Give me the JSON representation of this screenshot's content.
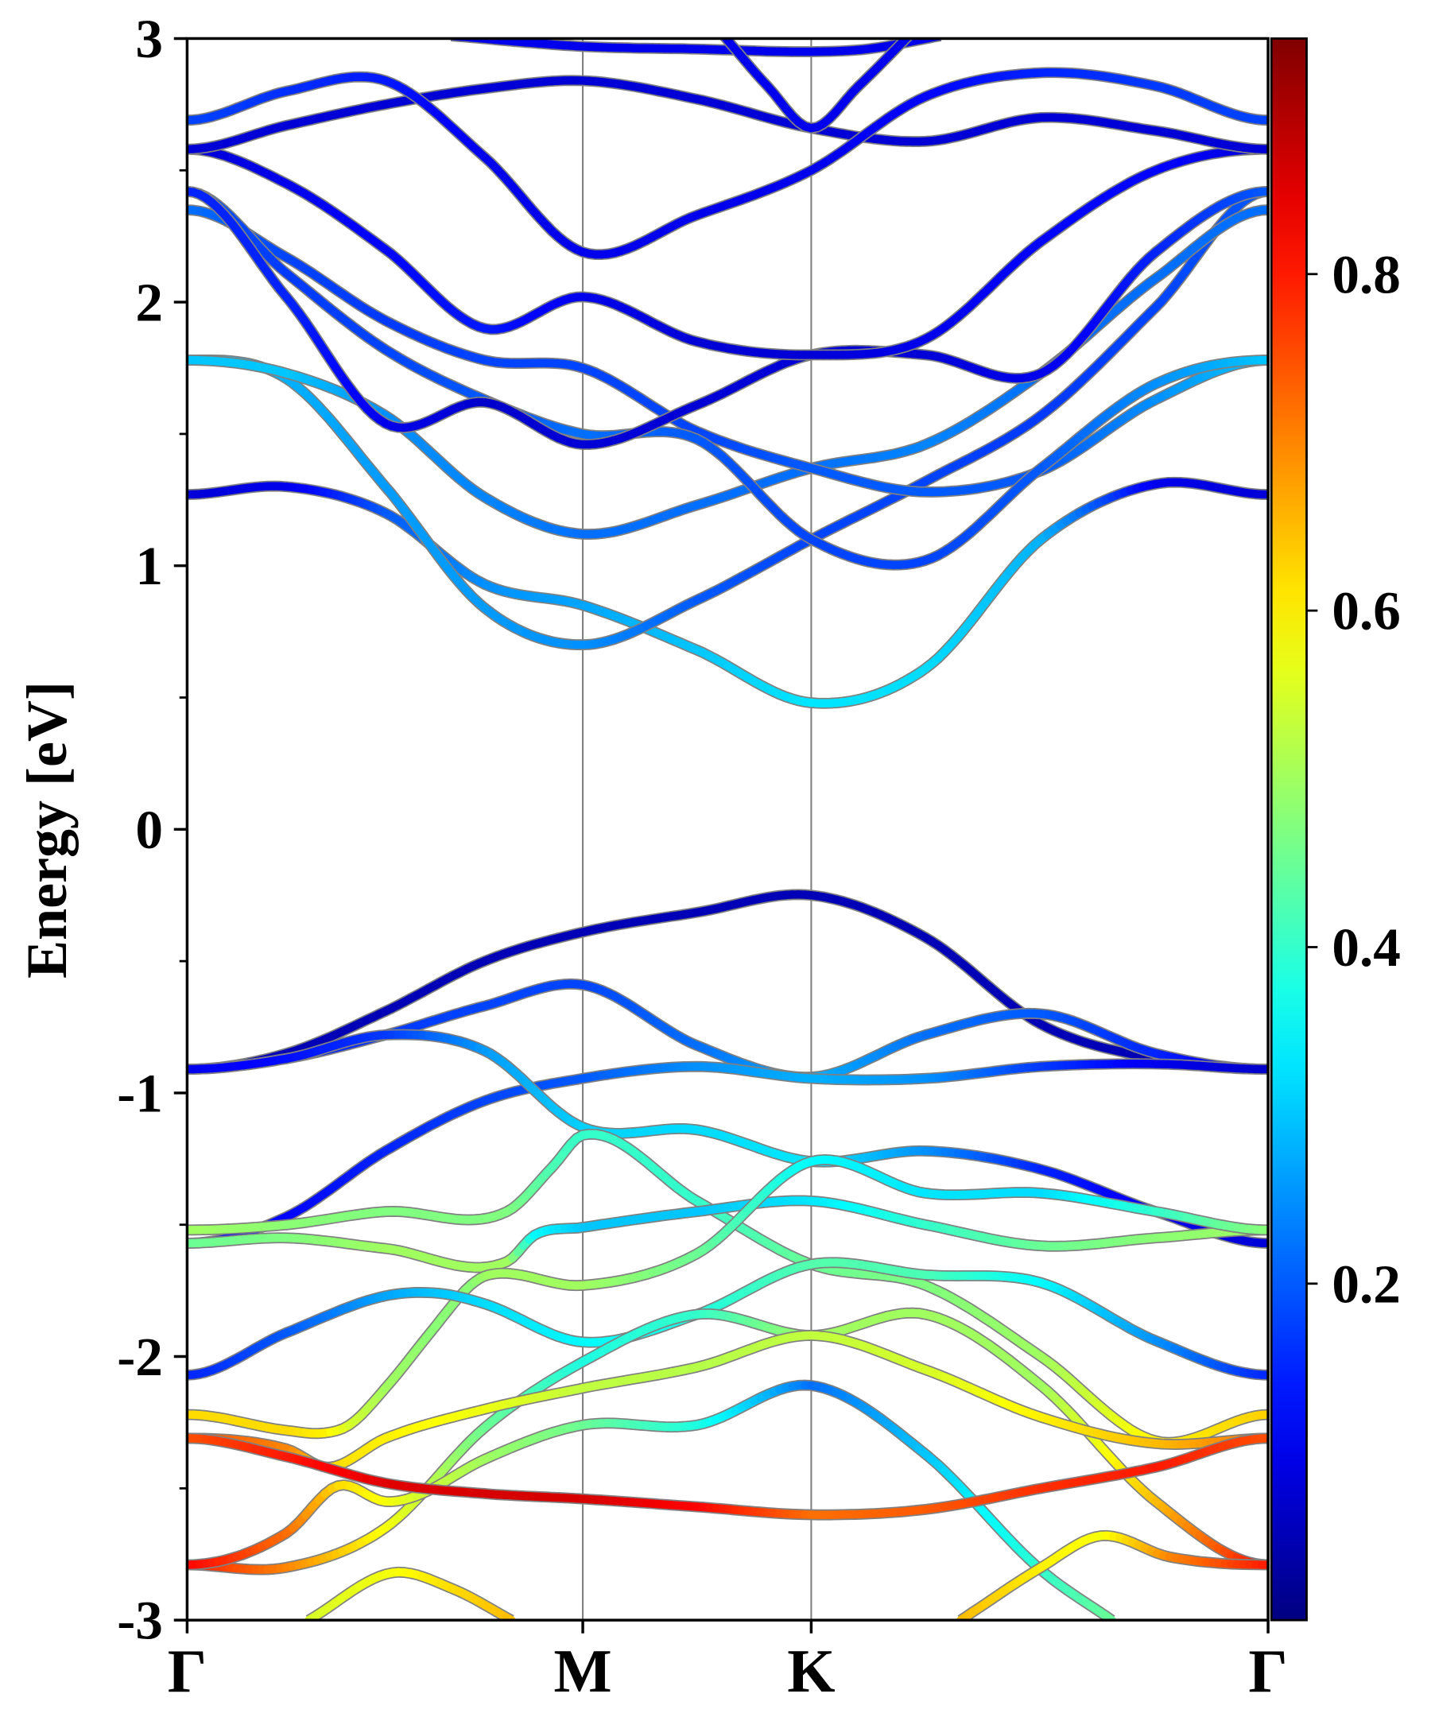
{
  "chart_data": {
    "type": "line",
    "title": "",
    "xlabel": "",
    "ylabel": "Energy [eV]",
    "ylim": [
      -3,
      3
    ],
    "xlim": [
      0,
      2.366
    ],
    "grid": false,
    "y_ticks": [
      {
        "value": 3,
        "label": "3"
      },
      {
        "value": 2,
        "label": "2"
      },
      {
        "value": 1,
        "label": "1"
      },
      {
        "value": 0,
        "label": "0"
      },
      {
        "value": -1,
        "label": "-1"
      },
      {
        "value": -2,
        "label": "-2"
      },
      {
        "value": -3,
        "label": "-3"
      }
    ],
    "y_minor_ticks": [
      2.5,
      1.5,
      0.5,
      -0.5,
      -1.5,
      -2.5
    ],
    "high_symmetry_points": [
      {
        "k": 0,
        "label": "Γ"
      },
      {
        "k": 0.866,
        "label": "M"
      },
      {
        "k": 1.366,
        "label": "K"
      },
      {
        "k": 2.366,
        "label": "Γ"
      }
    ],
    "colorbar": {
      "colormap": "jet",
      "min": 0.0,
      "max": 0.94,
      "ticks": [
        {
          "value": 0.2,
          "label": "0.2"
        },
        {
          "value": 0.4,
          "label": "0.4"
        },
        {
          "value": 0.6,
          "label": "0.6"
        },
        {
          "value": 0.8,
          "label": "0.8"
        }
      ]
    },
    "colors": {
      "band_outline": "#808080",
      "frame": "#000000",
      "symmetry_line": "#808080"
    },
    "bands": [
      {
        "name": "cb-a",
        "k": [
          0,
          0.217,
          0.434,
          0.651,
          0.866,
          1.116,
          1.366,
          1.616,
          1.869,
          2.12,
          2.366
        ],
        "E": [
          1.27,
          1.3,
          1.2,
          0.93,
          0.85,
          0.68,
          0.48,
          0.61,
          1.1,
          1.31,
          1.27
        ],
        "w": [
          0.08,
          0.1,
          0.2,
          0.25,
          0.27,
          0.3,
          0.33,
          0.32,
          0.28,
          0.1,
          0.08
        ]
      },
      {
        "name": "cb-b",
        "k": [
          0,
          0.217,
          0.434,
          0.651,
          0.866,
          1.116,
          1.366,
          1.616,
          1.869,
          2.12,
          2.366
        ],
        "E": [
          1.78,
          1.71,
          1.3,
          0.84,
          0.7,
          0.87,
          1.1,
          1.32,
          1.57,
          1.98,
          2.42
        ],
        "w": [
          0.3,
          0.28,
          0.26,
          0.26,
          0.25,
          0.2,
          0.18,
          0.18,
          0.17,
          0.18,
          0.2
        ]
      },
      {
        "name": "cb-c",
        "k": [
          0,
          0.217,
          0.434,
          0.651,
          0.866,
          1.116,
          1.366,
          1.616,
          1.869,
          2.12,
          2.366
        ],
        "E": [
          1.78,
          1.73,
          1.57,
          1.26,
          1.12,
          1.23,
          1.37,
          1.46,
          1.73,
          2.09,
          2.35
        ],
        "w": [
          0.3,
          0.3,
          0.25,
          0.24,
          0.22,
          0.22,
          0.22,
          0.24,
          0.22,
          0.22,
          0.22
        ]
      },
      {
        "name": "cb-d",
        "k": [
          0,
          0.217,
          0.434,
          0.651,
          0.866,
          1.116,
          1.366,
          1.616,
          1.869,
          2.12,
          2.366
        ],
        "E": [
          2.35,
          2.17,
          1.93,
          1.78,
          1.75,
          1.51,
          1.37,
          1.28,
          1.36,
          1.63,
          1.78
        ],
        "w": [
          0.22,
          0.18,
          0.17,
          0.18,
          0.18,
          0.18,
          0.2,
          0.2,
          0.2,
          0.25,
          0.3
        ]
      },
      {
        "name": "cb-e",
        "k": [
          0,
          0.217,
          0.434,
          0.651,
          0.866,
          1.116,
          1.366,
          1.616,
          1.869,
          2.12,
          2.366
        ],
        "E": [
          2.42,
          2.11,
          1.82,
          1.63,
          1.5,
          1.48,
          1.1,
          1.02,
          1.37,
          1.69,
          1.78
        ],
        "w": [
          0.2,
          0.17,
          0.18,
          0.2,
          0.22,
          0.2,
          0.18,
          0.18,
          0.2,
          0.25,
          0.3
        ]
      },
      {
        "name": "cb-f",
        "k": [
          0,
          0.217,
          0.434,
          0.651,
          0.866,
          1.116,
          1.366,
          1.616,
          1.869,
          2.12,
          2.366
        ],
        "E": [
          2.42,
          2.02,
          1.54,
          1.62,
          1.46,
          1.61,
          1.8,
          1.8,
          1.73,
          2.19,
          2.42
        ],
        "w": [
          0.15,
          0.15,
          0.1,
          0.07,
          0.08,
          0.08,
          0.08,
          0.08,
          0.1,
          0.15,
          0.2
        ]
      },
      {
        "name": "cb-g",
        "k": [
          0,
          0.217,
          0.434,
          0.651,
          0.866,
          1.116,
          1.366,
          1.616,
          1.869,
          2.12,
          2.366
        ],
        "E": [
          2.58,
          2.45,
          2.2,
          1.9,
          2.02,
          1.85,
          1.8,
          1.86,
          2.23,
          2.5,
          2.58
        ],
        "w": [
          0.08,
          0.1,
          0.12,
          0.14,
          0.1,
          0.08,
          0.08,
          0.1,
          0.12,
          0.12,
          0.08
        ]
      },
      {
        "name": "cb-h",
        "k": [
          0,
          0.217,
          0.434,
          0.651,
          0.866,
          1.116,
          1.366,
          1.616,
          1.869,
          2.12,
          2.366
        ],
        "E": [
          2.58,
          2.67,
          2.75,
          2.81,
          2.84,
          2.77,
          2.66,
          2.61,
          2.7,
          2.65,
          2.58
        ],
        "w": [
          0.08,
          0.08,
          0.08,
          0.08,
          0.08,
          0.08,
          0.08,
          0.08,
          0.08,
          0.08,
          0.08
        ]
      },
      {
        "name": "cb-i",
        "k": [
          0,
          0.217,
          0.434,
          0.651,
          0.866,
          1.116,
          1.366,
          1.616,
          1.869,
          2.12,
          2.366
        ],
        "E": [
          2.69,
          2.8,
          2.84,
          2.55,
          2.19,
          2.33,
          2.5,
          2.78,
          2.87,
          2.82,
          2.69
        ],
        "w": [
          0.18,
          0.16,
          0.14,
          0.1,
          0.1,
          0.1,
          0.1,
          0.12,
          0.15,
          0.17,
          0.18
        ]
      },
      {
        "name": "cb-j",
        "k": [
          0.578,
          0.866,
          1.116,
          1.366,
          1.488,
          1.649
        ],
        "E": [
          3.01,
          2.97,
          2.96,
          2.95,
          2.96,
          3.01
        ],
        "w": [
          0.1,
          0.1,
          0.1,
          0.1,
          0.1,
          0.1
        ]
      },
      {
        "name": "cb-k",
        "k": [
          1.17,
          1.27,
          1.366,
          1.47,
          1.585
        ],
        "E": [
          3.02,
          2.82,
          2.66,
          2.82,
          3.02
        ],
        "w": [
          0.1,
          0.1,
          0.1,
          0.1,
          0.1
        ]
      },
      {
        "name": "vb-1",
        "k": [
          0,
          0.217,
          0.434,
          0.651,
          0.866,
          1.116,
          1.366,
          1.616,
          1.869,
          2.12,
          2.366
        ],
        "E": [
          -0.91,
          -0.85,
          -0.69,
          -0.5,
          -0.39,
          -0.315,
          -0.25,
          -0.41,
          -0.74,
          -0.87,
          -0.91
        ],
        "w": [
          0.05,
          0.05,
          0.05,
          0.05,
          0.05,
          0.05,
          0.05,
          0.05,
          0.05,
          0.05,
          0.05
        ]
      },
      {
        "name": "vb-2",
        "k": [
          0,
          0.217,
          0.434,
          0.651,
          0.866,
          1.116,
          1.366,
          1.616,
          1.869,
          2.12,
          2.366
        ],
        "E": [
          -0.91,
          -0.87,
          -0.78,
          -0.67,
          -0.59,
          -0.82,
          -0.94,
          -0.78,
          -0.7,
          -0.85,
          -0.91
        ],
        "w": [
          0.1,
          0.13,
          0.17,
          0.18,
          0.18,
          0.22,
          0.28,
          0.22,
          0.2,
          0.15,
          0.08
        ]
      },
      {
        "name": "vb-3",
        "k": [
          0,
          0.217,
          0.434,
          0.651,
          0.866,
          1.116,
          1.366,
          1.616,
          1.869,
          2.12,
          2.366
        ],
        "E": [
          -1.57,
          -1.47,
          -1.22,
          -1.03,
          -0.945,
          -0.9,
          -0.945,
          -0.945,
          -0.9,
          -0.89,
          -0.91
        ],
        "w": [
          0.12,
          0.12,
          0.15,
          0.18,
          0.2,
          0.25,
          0.28,
          0.25,
          0.17,
          0.1,
          0.07
        ]
      },
      {
        "name": "vb-4",
        "k": [
          0,
          0.217,
          0.434,
          0.651,
          0.866,
          1.116,
          1.366,
          1.616,
          1.869,
          2.12,
          2.366
        ],
        "E": [
          -0.91,
          -0.87,
          -0.78,
          -0.84,
          -1.13,
          -1.14,
          -1.26,
          -1.22,
          -1.29,
          -1.45,
          -1.57
        ],
        "w": [
          0.1,
          0.13,
          0.17,
          0.26,
          0.31,
          0.32,
          0.33,
          0.25,
          0.15,
          0.1,
          0.08
        ]
      },
      {
        "name": "vb-5",
        "k": [
          0,
          0.217,
          0.434,
          0.7,
          0.8,
          0.866,
          1.116,
          1.366,
          1.616,
          1.869,
          2.12,
          2.366
        ],
        "E": [
          -1.52,
          -1.5,
          -1.45,
          -1.45,
          -1.28,
          -1.16,
          -1.41,
          -1.65,
          -1.73,
          -2.0,
          -2.32,
          -2.22
        ],
        "w": [
          0.5,
          0.48,
          0.47,
          0.47,
          0.42,
          0.4,
          0.4,
          0.45,
          0.47,
          0.5,
          0.6,
          0.63
        ]
      },
      {
        "name": "vb-6",
        "k": [
          0,
          0.217,
          0.434,
          0.7,
          0.76,
          0.866,
          1.116,
          1.366,
          1.616,
          1.869,
          2.12,
          2.366
        ],
        "E": [
          -1.57,
          -1.55,
          -1.59,
          -1.64,
          -1.54,
          -1.51,
          -1.45,
          -1.41,
          -1.5,
          -1.58,
          -1.55,
          -1.52
        ],
        "w": [
          0.45,
          0.47,
          0.5,
          0.5,
          0.35,
          0.3,
          0.3,
          0.33,
          0.4,
          0.45,
          0.48,
          0.5
        ]
      },
      {
        "name": "vb-7",
        "k": [
          0,
          0.217,
          0.3,
          0.355,
          0.434,
          0.532,
          0.62,
          0.66,
          0.866,
          1.116,
          1.366,
          1.616,
          1.869,
          2.12,
          2.366
        ],
        "E": [
          -2.22,
          -2.28,
          -2.29,
          -2.26,
          -2.12,
          -1.91,
          -1.73,
          -1.69,
          -1.73,
          -1.61,
          -1.26,
          -1.38,
          -1.38,
          -1.45,
          -1.52
        ],
        "w": [
          0.62,
          0.62,
          0.6,
          0.55,
          0.5,
          0.48,
          0.48,
          0.5,
          0.5,
          0.45,
          0.35,
          0.33,
          0.32,
          0.4,
          0.48
        ]
      },
      {
        "name": "vb-8",
        "k": [
          0,
          0.217,
          0.434,
          0.55,
          0.651,
          0.866,
          1.116,
          1.366,
          1.616,
          1.869,
          2.12,
          2.366
        ],
        "E": [
          -2.07,
          -1.91,
          -1.77,
          -1.76,
          -1.8,
          -1.945,
          -1.84,
          -1.65,
          -1.69,
          -1.72,
          -1.94,
          -2.07
        ],
        "w": [
          0.15,
          0.2,
          0.27,
          0.3,
          0.32,
          0.35,
          0.38,
          0.43,
          0.42,
          0.35,
          0.25,
          0.15
        ]
      },
      {
        "name": "vb-9",
        "k": [
          0,
          0.217,
          0.434,
          0.651,
          0.866,
          1.116,
          1.366,
          1.616,
          1.869,
          2.12,
          2.366
        ],
        "E": [
          -2.79,
          -2.8,
          -2.65,
          -2.27,
          -2.02,
          -1.84,
          -1.92,
          -1.84,
          -2.11,
          -2.55,
          -2.79
        ],
        "w": [
          0.8,
          0.7,
          0.58,
          0.45,
          0.38,
          0.4,
          0.5,
          0.5,
          0.5,
          0.65,
          0.82
        ]
      },
      {
        "name": "vb-10",
        "k": [
          0,
          0.217,
          0.31,
          0.434,
          0.651,
          0.866,
          1.116,
          1.366,
          1.616,
          1.869,
          2.12,
          2.366
        ],
        "E": [
          -2.31,
          -2.35,
          -2.42,
          -2.31,
          -2.2,
          -2.12,
          -2.04,
          -1.92,
          -2.05,
          -2.23,
          -2.33,
          -2.31
        ],
        "w": [
          0.75,
          0.7,
          0.62,
          0.6,
          0.57,
          0.53,
          0.52,
          0.53,
          0.55,
          0.6,
          0.65,
          0.72
        ]
      },
      {
        "name": "vb-11",
        "k": [
          0,
          0.217,
          0.33,
          0.434,
          0.5,
          0.651,
          0.866,
          1.116,
          1.366,
          1.616,
          1.869,
          2.024
        ],
        "E": [
          -2.79,
          -2.67,
          -2.49,
          -2.55,
          -2.53,
          -2.39,
          -2.26,
          -2.26,
          -2.11,
          -2.37,
          -2.81,
          -3.0
        ],
        "w": [
          0.82,
          0.72,
          0.62,
          0.58,
          0.55,
          0.5,
          0.45,
          0.38,
          0.22,
          0.3,
          0.4,
          0.45
        ]
      },
      {
        "name": "vb-12",
        "k": [
          0,
          0.217,
          0.434,
          0.651,
          0.866,
          1.116,
          1.366,
          1.616,
          1.869,
          2.12,
          2.366
        ],
        "E": [
          -2.31,
          -2.38,
          -2.48,
          -2.52,
          -2.54,
          -2.57,
          -2.6,
          -2.58,
          -2.5,
          -2.42,
          -2.31
        ],
        "w": [
          0.75,
          0.8,
          0.85,
          0.86,
          0.86,
          0.82,
          0.72,
          0.74,
          0.78,
          0.8,
          0.75
        ]
      },
      {
        "name": "vb-13",
        "k": [
          0.266,
          0.45,
          0.58,
          0.71
        ],
        "E": [
          -3.0,
          -2.82,
          -2.88,
          -3.0
        ],
        "w": [
          0.55,
          0.58,
          0.62,
          0.65
        ]
      },
      {
        "name": "vb-14",
        "k": [
          1.693,
          1.869,
          2.0,
          2.15,
          2.366
        ],
        "E": [
          -3.0,
          -2.8,
          -2.68,
          -2.76,
          -2.79
        ],
        "w": [
          0.65,
          0.6,
          0.58,
          0.7,
          0.8
        ]
      }
    ]
  }
}
